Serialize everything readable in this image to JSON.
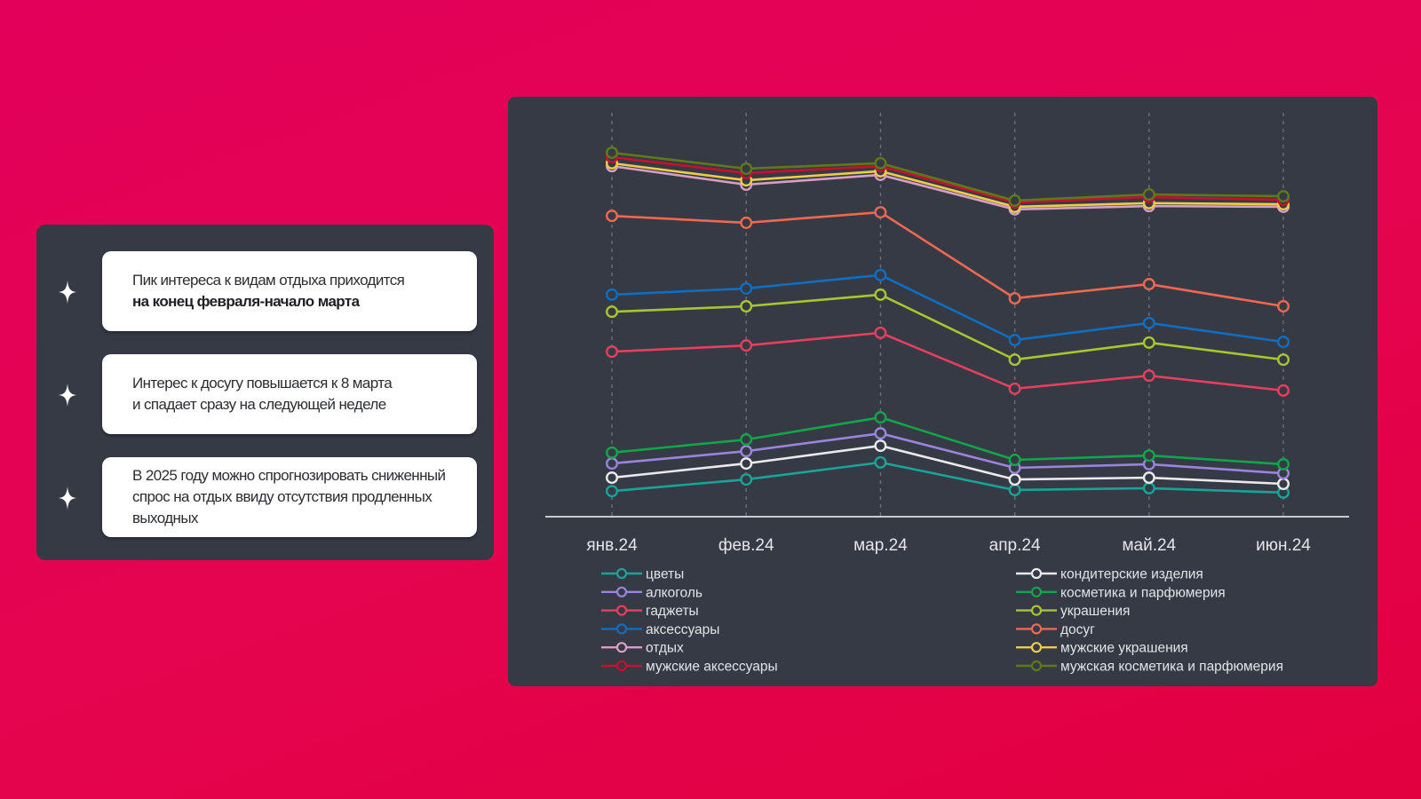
{
  "insights": [
    {
      "icon": "sparkle-icon",
      "line1": "Пик интереса к видам отдыха приходится",
      "line2_bold": "на конец февраля-начало марта"
    },
    {
      "icon": "sparkle-icon",
      "line1": "Интерес к досугу повышается к 8 марта",
      "line2": "и спадает сразу на следующей неделе"
    },
    {
      "icon": "sparkle-icon",
      "line1": "В 2025 году можно спрогнозировать сниженный",
      "line2": "спрос на отдых ввиду отсутствия продленных",
      "line3": "выходных"
    }
  ],
  "chart_data": {
    "type": "line",
    "title": "",
    "xlabel": "",
    "ylabel": "",
    "y_axis_visible": false,
    "ylim": [
      0,
      105
    ],
    "grid": "vertical dashed",
    "legend_position": "bottom",
    "categories": [
      "янв.24",
      "фев.24",
      "мар.24",
      "апр.24",
      "май.24",
      "июн.24"
    ],
    "series": [
      {
        "name": "цветы",
        "color": "#17a59a",
        "values": [
          6.8,
          10.0,
          14.7,
          7.1,
          7.6,
          6.4
        ]
      },
      {
        "name": "кондитерские изделия",
        "color": "#e9e9ee",
        "values": [
          10.5,
          14.4,
          19.3,
          10.0,
          10.5,
          8.8
        ]
      },
      {
        "name": "алкоголь",
        "color": "#9a84dc",
        "values": [
          14.4,
          17.8,
          22.7,
          13.2,
          14.2,
          11.7
        ]
      },
      {
        "name": "косметика и парфюмерия",
        "color": "#11a64a",
        "values": [
          17.4,
          21.0,
          27.1,
          15.4,
          16.6,
          14.2
        ]
      },
      {
        "name": "гаджеты",
        "color": "#e83f5e",
        "values": [
          45.2,
          46.9,
          50.4,
          35.0,
          38.6,
          34.5
        ]
      },
      {
        "name": "украшения",
        "color": "#a9c62c",
        "values": [
          56.2,
          57.7,
          60.9,
          43.0,
          47.7,
          43.0
        ]
      },
      {
        "name": "аксессуары",
        "color": "#0d6ec2",
        "values": [
          60.9,
          62.6,
          66.3,
          48.4,
          53.1,
          47.9
        ]
      },
      {
        "name": "досуг",
        "color": "#f0684f",
        "values": [
          82.6,
          80.7,
          83.6,
          59.9,
          63.8,
          57.7
        ]
      },
      {
        "name": "отдых",
        "color": "#d99ec6",
        "values": [
          96.3,
          91.2,
          93.9,
          84.4,
          85.3,
          85.1
        ]
      },
      {
        "name": "мужские украшения",
        "color": "#eccd4a",
        "values": [
          97.1,
          92.4,
          94.9,
          85.1,
          86.1,
          85.8
        ]
      },
      {
        "name": "мужские аксессуары",
        "color": "#c8102e",
        "values": [
          98.8,
          94.4,
          96.3,
          86.3,
          87.8,
          87.0
        ]
      },
      {
        "name": "мужская косметика и парфюмерия",
        "color": "#5e7a18",
        "values": [
          100.0,
          95.6,
          97.1,
          86.8,
          88.5,
          88.0
        ]
      }
    ],
    "legend_columns": [
      [
        "цветы",
        "алкоголь",
        "гаджеты",
        "аксессуары",
        "отдых",
        "мужские аксессуары"
      ],
      [
        "кондитерские изделия",
        "косметика и парфюмерия",
        "украшения",
        "досуг",
        "мужские украшения",
        "мужская косметика и парфюмерия"
      ]
    ]
  },
  "colors": {
    "background": "#e2004f",
    "panel": "#363a45",
    "card": "#ffffff",
    "axis_text": "#e6e6ea",
    "gridline": "#6a6f7c"
  }
}
